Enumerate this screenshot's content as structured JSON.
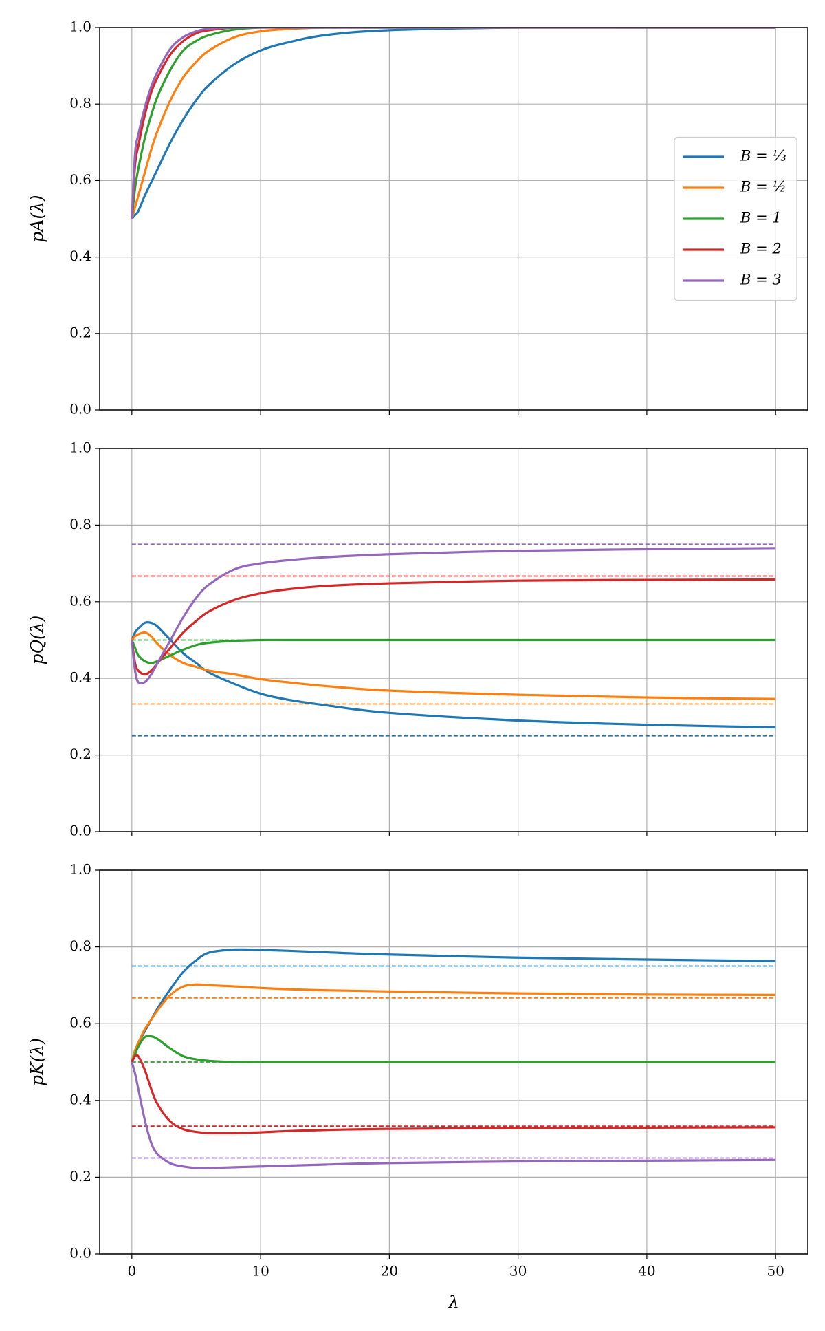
{
  "chart_data": [
    {
      "type": "line",
      "ylabel": "pA(λ)",
      "legend": "center right",
      "grid": true,
      "x": [
        0,
        0.25,
        0.5,
        1,
        1.5,
        2,
        3,
        4,
        5,
        6,
        8,
        10,
        12,
        15,
        20,
        30,
        40,
        50
      ],
      "series": [
        {
          "name": "B = ⅓",
          "color": "#1f77b4",
          "values": [
            0.5,
            0.51,
            0.52,
            0.56,
            0.595,
            0.63,
            0.7,
            0.76,
            0.81,
            0.85,
            0.905,
            0.94,
            0.96,
            0.98,
            0.993,
            1,
            1,
            1
          ]
        },
        {
          "name": "B = ½",
          "color": "#ff7f0e",
          "values": [
            0.5,
            0.53,
            0.56,
            0.62,
            0.68,
            0.73,
            0.81,
            0.87,
            0.91,
            0.94,
            0.975,
            0.99,
            0.996,
            1,
            1,
            1,
            1,
            1
          ]
        },
        {
          "name": "B = 1",
          "color": "#2ca02c",
          "values": [
            0.5,
            0.58,
            0.63,
            0.71,
            0.77,
            0.82,
            0.89,
            0.94,
            0.965,
            0.98,
            0.995,
            1,
            1,
            1,
            1,
            1,
            1,
            1
          ]
        },
        {
          "name": "B = 2",
          "color": "#d62728",
          "values": [
            0.5,
            0.64,
            0.69,
            0.77,
            0.83,
            0.87,
            0.93,
            0.965,
            0.985,
            0.993,
            1,
            1,
            1,
            1,
            1,
            1,
            1,
            1
          ]
        },
        {
          "name": "B = 3",
          "color": "#9467bd",
          "values": [
            0.5,
            0.67,
            0.72,
            0.79,
            0.845,
            0.885,
            0.945,
            0.975,
            0.99,
            0.997,
            1,
            1,
            1,
            1,
            1,
            1,
            1,
            1
          ]
        }
      ],
      "xlim": [
        -2.5,
        52.5
      ],
      "ylim": [
        0,
        1
      ],
      "xticks": [
        0,
        10,
        20,
        30,
        40,
        50
      ],
      "yticks": [
        {
          "value": 0,
          "label": "0.0"
        },
        {
          "value": 0.2,
          "label": "0.2"
        },
        {
          "value": 0.4,
          "label": "0.4"
        },
        {
          "value": 0.6,
          "label": "0.6"
        },
        {
          "value": 0.8,
          "label": "0.8"
        },
        {
          "value": 1,
          "label": "1.0"
        }
      ]
    },
    {
      "type": "line",
      "ylabel": "pQ(λ)",
      "grid": true,
      "x": [
        0,
        0.25,
        0.5,
        1,
        1.5,
        2,
        3,
        4,
        5,
        6,
        8,
        10,
        12,
        15,
        20,
        30,
        40,
        50
      ],
      "series": [
        {
          "color": "#1f77b4",
          "values": [
            0.5,
            0.52,
            0.53,
            0.545,
            0.545,
            0.535,
            0.5,
            0.465,
            0.44,
            0.415,
            0.385,
            0.36,
            0.345,
            0.33,
            0.31,
            0.29,
            0.279,
            0.272
          ]
        },
        {
          "color": "#ff7f0e",
          "values": [
            0.5,
            0.51,
            0.515,
            0.52,
            0.51,
            0.49,
            0.46,
            0.44,
            0.43,
            0.42,
            0.41,
            0.398,
            0.39,
            0.38,
            0.368,
            0.357,
            0.35,
            0.346
          ]
        },
        {
          "color": "#2ca02c",
          "values": [
            0.5,
            0.48,
            0.46,
            0.445,
            0.44,
            0.445,
            0.46,
            0.475,
            0.487,
            0.493,
            0.498,
            0.5,
            0.5,
            0.5,
            0.5,
            0.5,
            0.5,
            0.5
          ]
        },
        {
          "color": "#d62728",
          "values": [
            0.5,
            0.44,
            0.42,
            0.41,
            0.42,
            0.44,
            0.48,
            0.52,
            0.55,
            0.575,
            0.605,
            0.622,
            0.632,
            0.641,
            0.648,
            0.655,
            0.657,
            0.658
          ]
        },
        {
          "color": "#9467bd",
          "values": [
            0.5,
            0.42,
            0.39,
            0.39,
            0.41,
            0.44,
            0.5,
            0.56,
            0.61,
            0.645,
            0.685,
            0.7,
            0.708,
            0.716,
            0.724,
            0.733,
            0.737,
            0.74
          ]
        }
      ],
      "hlines": [
        {
          "y": 0.25,
          "color": "#1f77b4"
        },
        {
          "y": 0.333,
          "color": "#ff7f0e"
        },
        {
          "y": 0.5,
          "color": "#2ca02c"
        },
        {
          "y": 0.667,
          "color": "#d62728"
        },
        {
          "y": 0.75,
          "color": "#9467bd"
        }
      ],
      "xlim": [
        -2.5,
        52.5
      ],
      "ylim": [
        0,
        1
      ],
      "xticks": [
        0,
        10,
        20,
        30,
        40,
        50
      ],
      "yticks": [
        {
          "value": 0,
          "label": "0.0"
        },
        {
          "value": 0.2,
          "label": "0.2"
        },
        {
          "value": 0.4,
          "label": "0.4"
        },
        {
          "value": 0.6,
          "label": "0.6"
        },
        {
          "value": 0.8,
          "label": "0.8"
        },
        {
          "value": 1,
          "label": "1.0"
        }
      ]
    },
    {
      "type": "line",
      "ylabel": "pK(λ)",
      "xlabel": "λ",
      "grid": true,
      "x": [
        0,
        0.25,
        0.5,
        1,
        1.5,
        2,
        3,
        4,
        5,
        6,
        8,
        10,
        12,
        15,
        20,
        30,
        40,
        50
      ],
      "series": [
        {
          "color": "#1f77b4",
          "values": [
            0.5,
            0.53,
            0.55,
            0.58,
            0.61,
            0.64,
            0.69,
            0.735,
            0.765,
            0.785,
            0.793,
            0.792,
            0.79,
            0.786,
            0.78,
            0.772,
            0.767,
            0.763
          ]
        },
        {
          "color": "#ff7f0e",
          "values": [
            0.5,
            0.53,
            0.55,
            0.585,
            0.61,
            0.635,
            0.675,
            0.697,
            0.702,
            0.7,
            0.697,
            0.693,
            0.69,
            0.687,
            0.684,
            0.679,
            0.676,
            0.675
          ]
        },
        {
          "color": "#2ca02c",
          "values": [
            0.5,
            0.52,
            0.54,
            0.565,
            0.567,
            0.56,
            0.535,
            0.515,
            0.507,
            0.503,
            0.5,
            0.5,
            0.5,
            0.5,
            0.5,
            0.5,
            0.5,
            0.5
          ]
        },
        {
          "color": "#d62728",
          "values": [
            0.5,
            0.515,
            0.515,
            0.48,
            0.43,
            0.39,
            0.345,
            0.325,
            0.318,
            0.315,
            0.315,
            0.317,
            0.32,
            0.323,
            0.326,
            0.328,
            0.329,
            0.33
          ]
        },
        {
          "color": "#9467bd",
          "values": [
            0.5,
            0.47,
            0.43,
            0.35,
            0.29,
            0.26,
            0.236,
            0.228,
            0.224,
            0.224,
            0.226,
            0.228,
            0.23,
            0.233,
            0.237,
            0.241,
            0.243,
            0.245
          ]
        }
      ],
      "hlines": [
        {
          "y": 0.75,
          "color": "#1f77b4"
        },
        {
          "y": 0.667,
          "color": "#ff7f0e"
        },
        {
          "y": 0.5,
          "color": "#2ca02c"
        },
        {
          "y": 0.333,
          "color": "#d62728"
        },
        {
          "y": 0.25,
          "color": "#9467bd"
        }
      ],
      "xlim": [
        -2.5,
        52.5
      ],
      "ylim": [
        0,
        1
      ],
      "xticks": [
        0,
        10,
        20,
        30,
        40,
        50
      ],
      "yticks": [
        {
          "value": 0,
          "label": "0.0"
        },
        {
          "value": 0.2,
          "label": "0.2"
        },
        {
          "value": 0.4,
          "label": "0.4"
        },
        {
          "value": 0.6,
          "label": "0.6"
        },
        {
          "value": 0.8,
          "label": "0.8"
        },
        {
          "value": 1,
          "label": "1.0"
        }
      ]
    }
  ]
}
